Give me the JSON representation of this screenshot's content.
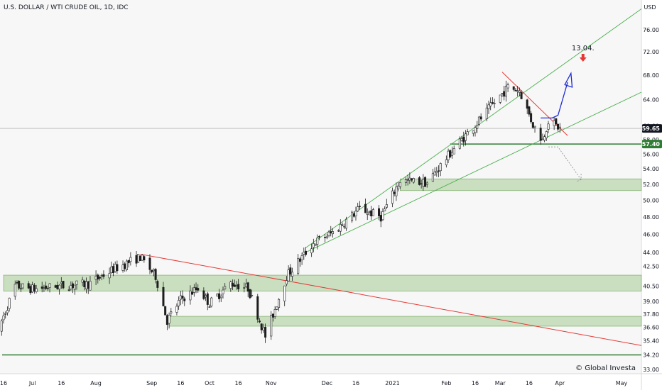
{
  "chart_data": {
    "type": "candlestick",
    "title": "U.S. DOLLAR / WTI CRUDE OIL, 1D, IDC",
    "y_unit": "USD",
    "ylim": [
      32.4,
      79.6
    ],
    "y_scale": "log",
    "y_ticks": [
      33.0,
      34.2,
      35.4,
      36.6,
      37.8,
      39.0,
      40.5,
      42.5,
      44.0,
      46.0,
      48.0,
      50.0,
      52.0,
      54.0,
      56.0,
      58.0,
      60.0,
      64.0,
      68.0,
      72.0,
      76.0
    ],
    "x_ticks": [
      {
        "label": "16",
        "date": "2020-06-16"
      },
      {
        "label": "Jul",
        "date": "2020-07-01"
      },
      {
        "label": "16",
        "date": "2020-07-16"
      },
      {
        "label": "Aug",
        "date": "2020-08-03"
      },
      {
        "label": "Sep",
        "date": "2020-09-01"
      },
      {
        "label": "16",
        "date": "2020-09-16"
      },
      {
        "label": "Oct",
        "date": "2020-10-01"
      },
      {
        "label": "16",
        "date": "2020-10-16"
      },
      {
        "label": "Nov",
        "date": "2020-11-02"
      },
      {
        "label": "Dec",
        "date": "2020-12-01"
      },
      {
        "label": "16",
        "date": "2020-12-16"
      },
      {
        "label": "2021",
        "date": "2021-01-04"
      },
      {
        "label": "Feb",
        "date": "2021-02-01"
      },
      {
        "label": "16",
        "date": "2021-02-16"
      },
      {
        "label": "Mar",
        "date": "2021-03-01"
      },
      {
        "label": "16",
        "date": "2021-03-16"
      },
      {
        "label": "Apr",
        "date": "2021-04-01"
      },
      {
        "label": "May",
        "date": "2021-05-03"
      }
    ],
    "current_price": 59.65,
    "support_price": 57.4,
    "annotation": {
      "label": "13.04.",
      "date": "2021-04-13",
      "price": 71.5
    },
    "watermark": "© Global Investa",
    "price_path": [
      {
        "date": "2020-06-12",
        "price": 35.8
      },
      {
        "date": "2020-06-22",
        "price": 40.5
      },
      {
        "date": "2020-07-02",
        "price": 40.2
      },
      {
        "date": "2020-07-15",
        "price": 40.5
      },
      {
        "date": "2020-07-30",
        "price": 40.7
      },
      {
        "date": "2020-08-12",
        "price": 42.2
      },
      {
        "date": "2020-08-26",
        "price": 43.5
      },
      {
        "date": "2020-09-03",
        "price": 41.5
      },
      {
        "date": "2020-09-09",
        "price": 37.2
      },
      {
        "date": "2020-09-16",
        "price": 39.2
      },
      {
        "date": "2020-09-25",
        "price": 40.3
      },
      {
        "date": "2020-10-01",
        "price": 38.8
      },
      {
        "date": "2020-10-12",
        "price": 40.8
      },
      {
        "date": "2020-10-21",
        "price": 40.3
      },
      {
        "date": "2020-10-30",
        "price": 35.8
      },
      {
        "date": "2020-11-03",
        "price": 37.8
      },
      {
        "date": "2020-11-10",
        "price": 41.5
      },
      {
        "date": "2020-11-24",
        "price": 45.0
      },
      {
        "date": "2020-12-04",
        "price": 46.2
      },
      {
        "date": "2020-12-18",
        "price": 49.0
      },
      {
        "date": "2020-12-29",
        "price": 48.0
      },
      {
        "date": "2021-01-08",
        "price": 52.5
      },
      {
        "date": "2021-01-22",
        "price": 52.2
      },
      {
        "date": "2021-02-05",
        "price": 56.8
      },
      {
        "date": "2021-02-17",
        "price": 60.5
      },
      {
        "date": "2021-02-25",
        "price": 63.2
      },
      {
        "date": "2021-03-05",
        "price": 66.0
      },
      {
        "date": "2021-03-11",
        "price": 65.5
      },
      {
        "date": "2021-03-18",
        "price": 60.2
      },
      {
        "date": "2021-03-23",
        "price": 58.0
      },
      {
        "date": "2021-03-26",
        "price": 60.8
      },
      {
        "date": "2021-04-01",
        "price": 59.65
      }
    ]
  },
  "y_axis_badges": {
    "current": "59.65",
    "support": "57.40"
  }
}
